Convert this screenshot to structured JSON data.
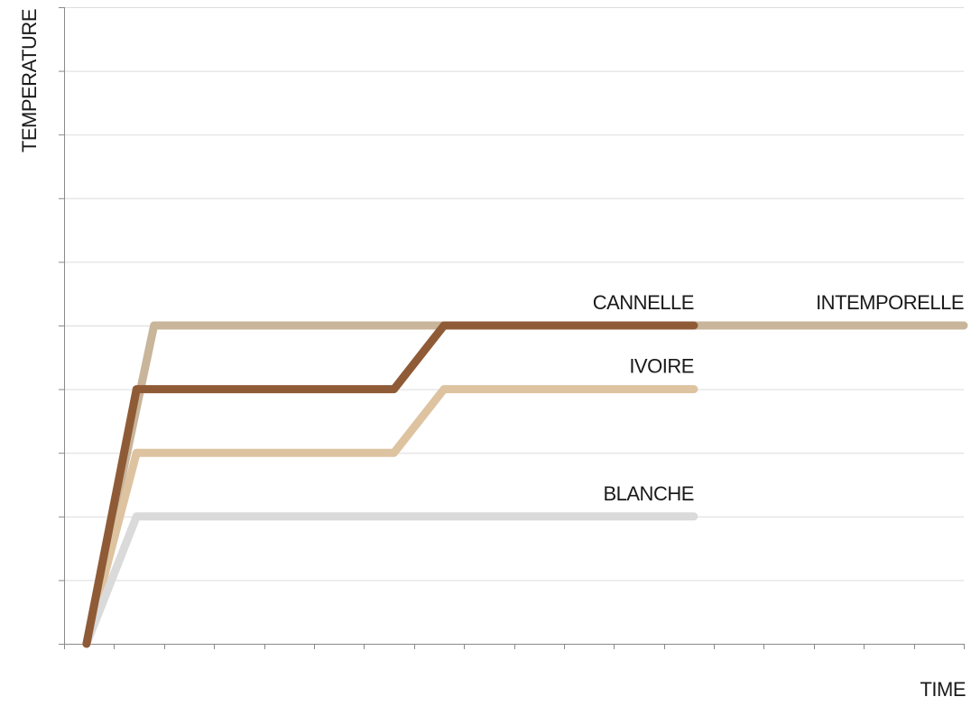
{
  "chart_data": {
    "type": "line",
    "xlabel": "TIME",
    "ylabel": "TEMPERATURE",
    "xlim": [
      0,
      18
    ],
    "ylim": [
      0,
      10
    ],
    "x_ticks": [
      0,
      1,
      2,
      3,
      4,
      5,
      6,
      7,
      8,
      9,
      10,
      11,
      12,
      13,
      14,
      15,
      16,
      17,
      18
    ],
    "y_ticks": [
      0,
      1,
      2,
      3,
      4,
      5,
      6,
      7,
      8,
      9,
      10
    ],
    "grid": "horizontal",
    "tick_labels_shown": false,
    "series": [
      {
        "name": "INTEMPORELLE",
        "color": "#c8b59a",
        "points": [
          [
            0.45,
            0
          ],
          [
            1.8,
            5
          ],
          [
            18,
            5
          ]
        ]
      },
      {
        "name": "IVOIRE",
        "color": "#dec3a0",
        "points": [
          [
            0.45,
            0
          ],
          [
            1.45,
            3
          ],
          [
            6.6,
            3
          ],
          [
            7.6,
            4
          ],
          [
            12.6,
            4
          ]
        ]
      },
      {
        "name": "BLANCHE",
        "color": "#dadada",
        "points": [
          [
            0.45,
            0
          ],
          [
            1.45,
            2
          ],
          [
            12.6,
            2
          ]
        ]
      },
      {
        "name": "CANNELLE",
        "color": "#8f5b37",
        "points": [
          [
            0.45,
            0
          ],
          [
            1.45,
            4
          ],
          [
            6.6,
            4
          ],
          [
            7.6,
            5
          ],
          [
            12.6,
            5
          ]
        ]
      }
    ]
  }
}
